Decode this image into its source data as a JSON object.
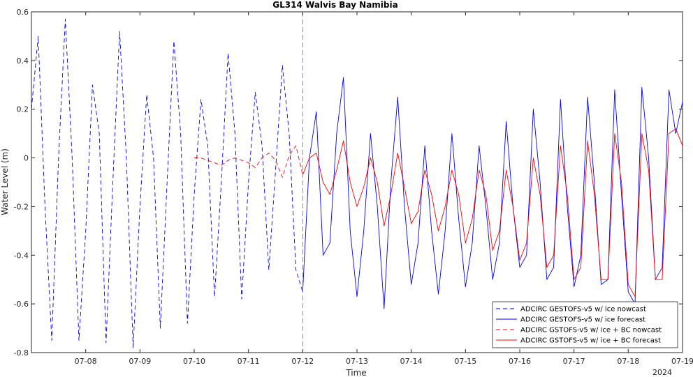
{
  "chart_data": {
    "type": "line",
    "title": "GL314 Walvis Bay Namibia",
    "xlabel": "Time",
    "ylabel": "Water Level (m)",
    "year_label": "2024",
    "xlim": [
      "2024-07-07T00:00",
      "2024-07-19T00:00"
    ],
    "ylim": [
      -0.8,
      0.6
    ],
    "y_ticks": [
      -0.8,
      -0.6,
      -0.4,
      -0.2,
      0,
      0.2,
      0.4,
      0.6
    ],
    "y_tick_labels": [
      "-0.8",
      "-0.6",
      "-0.4",
      "-0.2",
      "0",
      "0.2",
      "0.4",
      "0.6"
    ],
    "x_ticks": [
      "2024-07-08",
      "2024-07-09",
      "2024-07-10",
      "2024-07-11",
      "2024-07-12",
      "2024-07-13",
      "2024-07-14",
      "2024-07-15",
      "2024-07-16",
      "2024-07-17",
      "2024-07-18",
      "2024-07-19"
    ],
    "x_tick_labels": [
      "07-08",
      "07-09",
      "07-10",
      "07-11",
      "07-12",
      "07-13",
      "07-14",
      "07-15",
      "07-16",
      "07-17",
      "07-18",
      "07-19"
    ],
    "nowcast_end": "2024-07-12T00:00",
    "grid": false,
    "legend_position": "bottom-right",
    "series": [
      {
        "name": "ADCIRC GESTOFS-v5 w/ ice nowcast",
        "color": "#0000ff",
        "dash": "dashed",
        "x": [
          "2024-07-07T00:00",
          "2024-07-07T03:00",
          "2024-07-07T06:00",
          "2024-07-07T09:00",
          "2024-07-07T12:00",
          "2024-07-07T15:00",
          "2024-07-07T18:00",
          "2024-07-07T21:00",
          "2024-07-08T00:00",
          "2024-07-08T03:00",
          "2024-07-08T06:00",
          "2024-07-08T09:00",
          "2024-07-08T12:00",
          "2024-07-08T15:00",
          "2024-07-08T18:00",
          "2024-07-08T21:00",
          "2024-07-09T00:00",
          "2024-07-09T03:00",
          "2024-07-09T06:00",
          "2024-07-09T09:00",
          "2024-07-09T12:00",
          "2024-07-09T15:00",
          "2024-07-09T18:00",
          "2024-07-09T21:00",
          "2024-07-10T00:00",
          "2024-07-10T03:00",
          "2024-07-10T06:00",
          "2024-07-10T09:00",
          "2024-07-10T12:00",
          "2024-07-10T15:00",
          "2024-07-10T18:00",
          "2024-07-10T21:00",
          "2024-07-11T00:00",
          "2024-07-11T03:00",
          "2024-07-11T06:00",
          "2024-07-11T09:00",
          "2024-07-11T12:00",
          "2024-07-11T15:00",
          "2024-07-11T18:00",
          "2024-07-11T21:00",
          "2024-07-12T00:00"
        ],
        "y": [
          0.2,
          0.5,
          -0.2,
          -0.75,
          0.0,
          0.57,
          0.0,
          -0.75,
          -0.3,
          0.3,
          0.1,
          -0.76,
          -0.1,
          0.52,
          0.0,
          -0.78,
          -0.2,
          0.26,
          0.0,
          -0.7,
          -0.1,
          0.48,
          0.1,
          -0.68,
          -0.15,
          0.24,
          0.05,
          -0.57,
          -0.1,
          0.43,
          0.1,
          -0.58,
          -0.1,
          0.27,
          0.05,
          -0.46,
          -0.05,
          0.38,
          0.1,
          -0.46,
          -0.55
        ]
      },
      {
        "name": "ADCIRC GESTOFS-v5 w/ ice forecast",
        "color": "#0000ff",
        "dash": "solid",
        "x": [
          "2024-07-12T00:00",
          "2024-07-12T03:00",
          "2024-07-12T06:00",
          "2024-07-12T09:00",
          "2024-07-12T12:00",
          "2024-07-12T15:00",
          "2024-07-12T18:00",
          "2024-07-12T21:00",
          "2024-07-13T00:00",
          "2024-07-13T03:00",
          "2024-07-13T06:00",
          "2024-07-13T09:00",
          "2024-07-13T12:00",
          "2024-07-13T15:00",
          "2024-07-13T18:00",
          "2024-07-13T21:00",
          "2024-07-14T00:00",
          "2024-07-14T03:00",
          "2024-07-14T06:00",
          "2024-07-14T09:00",
          "2024-07-14T12:00",
          "2024-07-14T15:00",
          "2024-07-14T18:00",
          "2024-07-14T21:00",
          "2024-07-15T00:00",
          "2024-07-15T03:00",
          "2024-07-15T06:00",
          "2024-07-15T09:00",
          "2024-07-15T12:00",
          "2024-07-15T15:00",
          "2024-07-15T18:00",
          "2024-07-15T21:00",
          "2024-07-16T00:00",
          "2024-07-16T03:00",
          "2024-07-16T06:00",
          "2024-07-16T09:00",
          "2024-07-16T12:00",
          "2024-07-16T15:00",
          "2024-07-16T18:00",
          "2024-07-16T21:00",
          "2024-07-17T00:00",
          "2024-07-17T03:00",
          "2024-07-17T06:00",
          "2024-07-17T09:00",
          "2024-07-17T12:00",
          "2024-07-17T15:00",
          "2024-07-17T18:00",
          "2024-07-17T21:00",
          "2024-07-18T00:00",
          "2024-07-18T03:00",
          "2024-07-18T06:00",
          "2024-07-18T09:00",
          "2024-07-18T12:00",
          "2024-07-18T15:00",
          "2024-07-18T18:00",
          "2024-07-18T21:00",
          "2024-07-19T00:00"
        ],
        "y": [
          -0.55,
          0.0,
          0.19,
          -0.4,
          -0.35,
          0.1,
          0.33,
          -0.3,
          -0.57,
          -0.3,
          0.1,
          -0.2,
          -0.62,
          -0.1,
          0.25,
          -0.2,
          -0.52,
          -0.35,
          0.05,
          -0.3,
          -0.56,
          -0.3,
          0.1,
          -0.25,
          -0.53,
          -0.35,
          0.05,
          -0.2,
          -0.5,
          -0.35,
          0.15,
          -0.2,
          -0.45,
          -0.4,
          0.2,
          -0.1,
          -0.5,
          -0.45,
          0.24,
          -0.2,
          -0.53,
          -0.4,
          0.25,
          -0.1,
          -0.52,
          -0.5,
          0.28,
          -0.15,
          -0.55,
          -0.6,
          0.29,
          0.0,
          -0.5,
          -0.45,
          0.28,
          0.1,
          0.23
        ]
      },
      {
        "name": "ADCIRC GSTOFS-v5 w/ ice + BC nowcast",
        "color": "#ff0000",
        "dash": "dashed",
        "x": [
          "2024-07-10T00:00",
          "2024-07-10T03:00",
          "2024-07-10T06:00",
          "2024-07-10T09:00",
          "2024-07-10T12:00",
          "2024-07-10T15:00",
          "2024-07-10T18:00",
          "2024-07-10T21:00",
          "2024-07-11T00:00",
          "2024-07-11T03:00",
          "2024-07-11T06:00",
          "2024-07-11T09:00",
          "2024-07-11T12:00",
          "2024-07-11T15:00",
          "2024-07-11T18:00",
          "2024-07-11T21:00",
          "2024-07-12T00:00"
        ],
        "y": [
          0.0,
          0.0,
          -0.01,
          -0.02,
          -0.03,
          -0.01,
          0.0,
          -0.01,
          -0.02,
          -0.04,
          0.0,
          0.02,
          -0.01,
          -0.08,
          0.01,
          0.05,
          -0.07
        ]
      },
      {
        "name": "ADCIRC GSTOFS-v5 w/ ice + BC forecast",
        "color": "#ff0000",
        "dash": "solid",
        "x": [
          "2024-07-12T00:00",
          "2024-07-12T03:00",
          "2024-07-12T06:00",
          "2024-07-12T09:00",
          "2024-07-12T12:00",
          "2024-07-12T15:00",
          "2024-07-12T18:00",
          "2024-07-12T21:00",
          "2024-07-13T00:00",
          "2024-07-13T03:00",
          "2024-07-13T06:00",
          "2024-07-13T09:00",
          "2024-07-13T12:00",
          "2024-07-13T15:00",
          "2024-07-13T18:00",
          "2024-07-13T21:00",
          "2024-07-14T00:00",
          "2024-07-14T03:00",
          "2024-07-14T06:00",
          "2024-07-14T09:00",
          "2024-07-14T12:00",
          "2024-07-14T15:00",
          "2024-07-14T18:00",
          "2024-07-14T21:00",
          "2024-07-15T00:00",
          "2024-07-15T03:00",
          "2024-07-15T06:00",
          "2024-07-15T09:00",
          "2024-07-15T12:00",
          "2024-07-15T15:00",
          "2024-07-15T18:00",
          "2024-07-15T21:00",
          "2024-07-16T00:00",
          "2024-07-16T03:00",
          "2024-07-16T06:00",
          "2024-07-16T09:00",
          "2024-07-16T12:00",
          "2024-07-16T15:00",
          "2024-07-16T18:00",
          "2024-07-16T21:00",
          "2024-07-17T00:00",
          "2024-07-17T03:00",
          "2024-07-17T06:00",
          "2024-07-17T09:00",
          "2024-07-17T12:00",
          "2024-07-17T15:00",
          "2024-07-17T18:00",
          "2024-07-17T21:00",
          "2024-07-18T00:00",
          "2024-07-18T03:00",
          "2024-07-18T06:00",
          "2024-07-18T09:00",
          "2024-07-18T12:00",
          "2024-07-18T15:00",
          "2024-07-18T18:00",
          "2024-07-18T21:00",
          "2024-07-19T00:00"
        ],
        "y": [
          -0.07,
          0.0,
          0.02,
          -0.1,
          -0.15,
          -0.05,
          0.07,
          -0.1,
          -0.2,
          -0.12,
          0.0,
          -0.1,
          -0.28,
          -0.15,
          0.02,
          -0.12,
          -0.27,
          -0.22,
          -0.05,
          -0.15,
          -0.3,
          -0.2,
          -0.05,
          -0.15,
          -0.35,
          -0.25,
          -0.05,
          -0.15,
          -0.38,
          -0.3,
          -0.05,
          -0.2,
          -0.42,
          -0.35,
          0.0,
          -0.15,
          -0.45,
          -0.4,
          0.05,
          -0.15,
          -0.5,
          -0.45,
          0.07,
          -0.15,
          -0.5,
          -0.5,
          0.1,
          -0.1,
          -0.52,
          -0.57,
          0.1,
          -0.05,
          -0.5,
          -0.5,
          0.1,
          0.12,
          0.05
        ]
      }
    ]
  }
}
